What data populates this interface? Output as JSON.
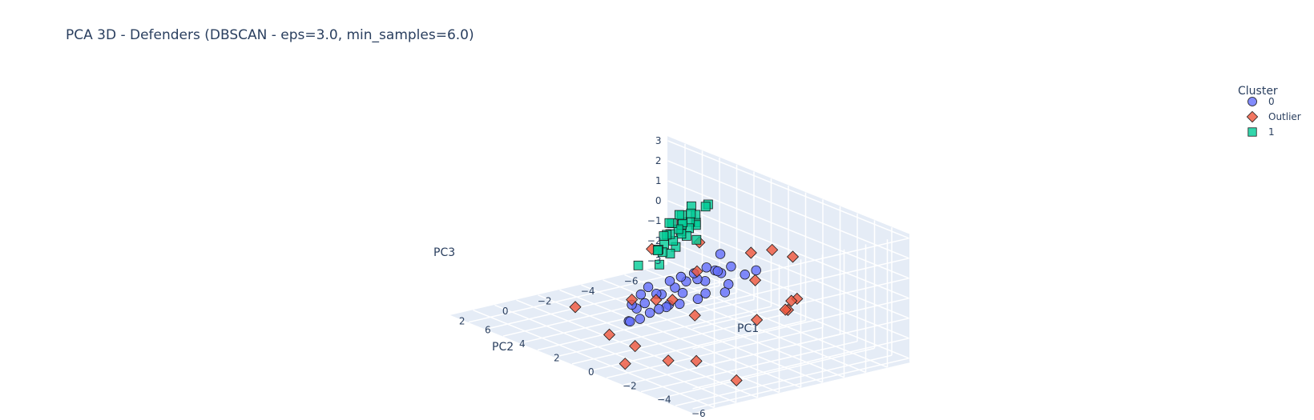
{
  "chart_data": {
    "type": "scatter",
    "dimensions": 3,
    "title": "PCA 3D - Defenders (DBSCAN - eps=3.0, min_samples=6.0)",
    "xlabel": "PC1",
    "ylabel": "PC2",
    "zlabel": "PC3",
    "x_ticks": [
      "6",
      "4",
      "2",
      "0",
      "−2",
      "−4",
      "−6"
    ],
    "y_ticks": [
      "−6",
      "−4",
      "−2",
      "0",
      "2"
    ],
    "z_ticks": [
      "3",
      "2",
      "1",
      "0",
      "−1",
      "−2",
      "−3"
    ],
    "legend": {
      "title": "Cluster",
      "placement": "top-right"
    },
    "grid": true,
    "series": [
      {
        "name": "0",
        "marker": "circle",
        "color": "#636efa",
        "points": [
          [
            -3.4,
            -2.8,
            1.2
          ],
          [
            -3.0,
            -2.6,
            0.9
          ],
          [
            -2.7,
            -2.2,
            1.3
          ],
          [
            -2.3,
            -1.9,
            1.0
          ],
          [
            -2.0,
            -2.3,
            0.7
          ],
          [
            -1.9,
            -1.7,
            1.1
          ],
          [
            -2.8,
            -2.0,
            0.5
          ],
          [
            -2.2,
            -1.4,
            0.6
          ],
          [
            -3.1,
            -1.6,
            0.3
          ],
          [
            -1.8,
            -1.2,
            0.9
          ],
          [
            -2.6,
            -1.1,
            0.2
          ],
          [
            -1.5,
            -1.6,
            0.4
          ],
          [
            -2.4,
            -0.9,
            -0.1
          ],
          [
            -1.3,
            -1.0,
            0.6
          ],
          [
            -1.9,
            -0.6,
            0.1
          ],
          [
            -1.1,
            -1.4,
            0.2
          ],
          [
            -2.1,
            -0.3,
            -0.3
          ],
          [
            -0.9,
            -0.8,
            0.3
          ],
          [
            -1.6,
            -0.2,
            -0.5
          ],
          [
            -0.7,
            -1.2,
            -0.2
          ],
          [
            -1.4,
            0.1,
            -0.7
          ],
          [
            -0.5,
            -0.5,
            -0.4
          ],
          [
            -1.0,
            0.2,
            -1.0
          ],
          [
            -0.3,
            -0.9,
            -0.6
          ],
          [
            -0.8,
            0.5,
            -1.3
          ],
          [
            -0.2,
            -0.2,
            -0.9
          ],
          [
            -0.6,
            0.3,
            -0.2
          ],
          [
            -1.2,
            -0.4,
            -0.8
          ],
          [
            0.1,
            -0.6,
            -0.3
          ],
          [
            -0.4,
            0.7,
            -1.5
          ],
          [
            0.3,
            0.0,
            -1.1
          ],
          [
            -1.7,
            -2.5,
            1.5
          ],
          [
            -2.9,
            -1.3,
            1.4
          ],
          [
            -0.1,
            0.4,
            -1.7
          ],
          [
            0.4,
            -0.3,
            -1.4
          ]
        ]
      },
      {
        "name": "Outlier",
        "marker": "diamond",
        "color": "#ef553b",
        "points": [
          [
            -6.2,
            -2.2,
            0.8
          ],
          [
            -5.4,
            -3.1,
            0.4
          ],
          [
            -5.6,
            -2.4,
            0.1
          ],
          [
            -5.2,
            -1.4,
            -0.3
          ],
          [
            -4.4,
            -3.7,
            2.0
          ],
          [
            -3.7,
            -3.3,
            2.2
          ],
          [
            -4.1,
            -2.2,
            1.1
          ],
          [
            -2.6,
            -3.2,
            1.7
          ],
          [
            -0.6,
            -2.3,
            0.3
          ],
          [
            -1.1,
            -1.8,
            -1.6
          ],
          [
            -0.3,
            -1.4,
            -1.0
          ],
          [
            0.4,
            -1.2,
            -1.2
          ],
          [
            1.3,
            -0.8,
            -1.4
          ],
          [
            -4.2,
            0.6,
            -2.2
          ],
          [
            -3.2,
            1.1,
            -2.4
          ],
          [
            -1.9,
            1.6,
            -2.0
          ],
          [
            -2.2,
            2.3,
            -2.6
          ],
          [
            0.6,
            0.8,
            -2.5
          ],
          [
            2.2,
            1.1,
            -1.6
          ],
          [
            -5.9,
            0.1,
            -2.7
          ],
          [
            0.9,
            -3.6,
            0.9
          ],
          [
            2.4,
            -2.6,
            0.3
          ],
          [
            -5.5,
            -2.6,
            0.0
          ]
        ]
      },
      {
        "name": "1",
        "marker": "square",
        "color": "#00cc96",
        "points": [
          [
            3.1,
            -5.2,
            0.6
          ],
          [
            3.5,
            -5.5,
            0.9
          ],
          [
            3.8,
            -5.1,
            0.4
          ],
          [
            4.0,
            -5.7,
            1.1
          ],
          [
            3.6,
            -4.9,
            0.2
          ],
          [
            4.2,
            -5.3,
            0.7
          ],
          [
            3.3,
            -5.8,
            1.3
          ],
          [
            4.4,
            -5.0,
            0.3
          ],
          [
            3.9,
            -5.6,
            0.8
          ],
          [
            4.1,
            -4.8,
            -0.1
          ],
          [
            3.7,
            -5.4,
            0.5
          ],
          [
            4.3,
            -5.5,
            0.6
          ],
          [
            3.4,
            -5.0,
            0.0
          ],
          [
            4.5,
            -5.2,
            0.2
          ],
          [
            3.8,
            -4.7,
            -0.3
          ],
          [
            4.0,
            -5.1,
            0.1
          ],
          [
            4.6,
            -4.9,
            -0.4
          ],
          [
            3.2,
            -5.3,
            -0.2
          ],
          [
            4.2,
            -4.6,
            -0.6
          ],
          [
            3.9,
            -4.9,
            -0.7
          ],
          [
            4.4,
            -4.5,
            -0.9
          ],
          [
            4.7,
            -4.7,
            -1.1
          ],
          [
            3.6,
            -4.4,
            -0.8
          ],
          [
            4.8,
            -5.0,
            -1.3
          ],
          [
            4.1,
            -4.3,
            -1.5
          ],
          [
            2.6,
            -4.8,
            1.0
          ],
          [
            2.9,
            -5.6,
            1.6
          ],
          [
            5.2,
            -4.2,
            -1.9
          ],
          [
            4.0,
            -5.3,
            0.4
          ],
          [
            3.7,
            -5.0,
            0.0
          ],
          [
            4.3,
            -4.8,
            -0.2
          ],
          [
            3.5,
            -5.2,
            0.3
          ]
        ]
      }
    ]
  }
}
